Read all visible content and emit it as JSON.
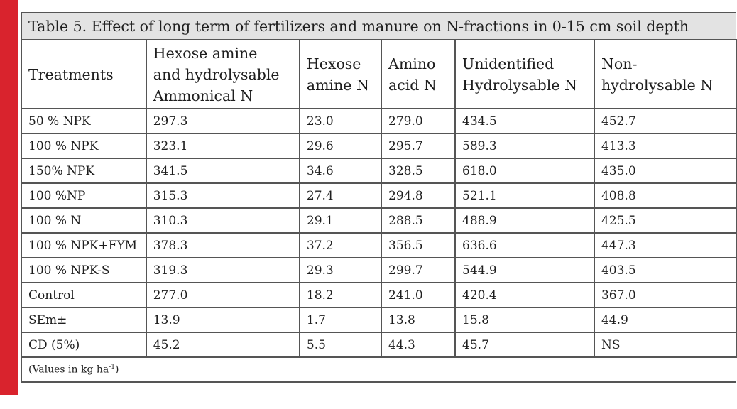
{
  "caption": "Table 5. Effect of long term of fertilizers and manure on N-fractions in 0-15 cm soil depth",
  "headers": [
    {
      "lines": [
        "Treatments"
      ]
    },
    {
      "lines": [
        "Hexose amine",
        "and hydrolysable",
        "Ammonical N"
      ]
    },
    {
      "lines": [
        "Hexose",
        "amine N"
      ]
    },
    {
      "lines": [
        "Amino",
        "acid N"
      ]
    },
    {
      "lines": [
        "Unidentified",
        "Hydrolysable N"
      ]
    },
    {
      "lines": [
        "Non-",
        "hydrolysable N"
      ]
    }
  ],
  "rows": [
    [
      "50 % NPK",
      "297.3",
      "23.0",
      "279.0",
      "434.5",
      "452.7"
    ],
    [
      "100 % NPK",
      "323.1",
      "29.6",
      "295.7",
      "589.3",
      "413.3"
    ],
    [
      "150% NPK",
      "341.5",
      "34.6",
      "328.5",
      "618.0",
      "435.0"
    ],
    [
      "100 %NP",
      "315.3",
      "27.4",
      "294.8",
      "521.1",
      "408.8"
    ],
    [
      "100 % N",
      "310.3",
      "29.1",
      "288.5",
      "488.9",
      "425.5"
    ],
    [
      "100 % NPK+FYM",
      "378.3",
      "37.2",
      "356.5",
      "636.6",
      "447.3"
    ],
    [
      "100 % NPK-S",
      "319.3",
      "29.3",
      "299.7",
      "544.9",
      "403.5"
    ],
    [
      "Control",
      "277.0",
      "18.2",
      "241.0",
      "420.4",
      "367.0"
    ],
    [
      "SEm±",
      "13.9",
      "1.7",
      "13.8",
      "15.8",
      "44.9"
    ],
    [
      "CD (5%)",
      "45.2",
      "5.5",
      "44.3",
      "45.7",
      "NS"
    ]
  ],
  "note": {
    "prefix": "(Values in kg ha",
    "superscript": "-1",
    "suffix": ")"
  },
  "colors": {
    "accent_bar": "#d9232d",
    "caption_background": "#e3e3e3",
    "grid_line": "#555555"
  }
}
